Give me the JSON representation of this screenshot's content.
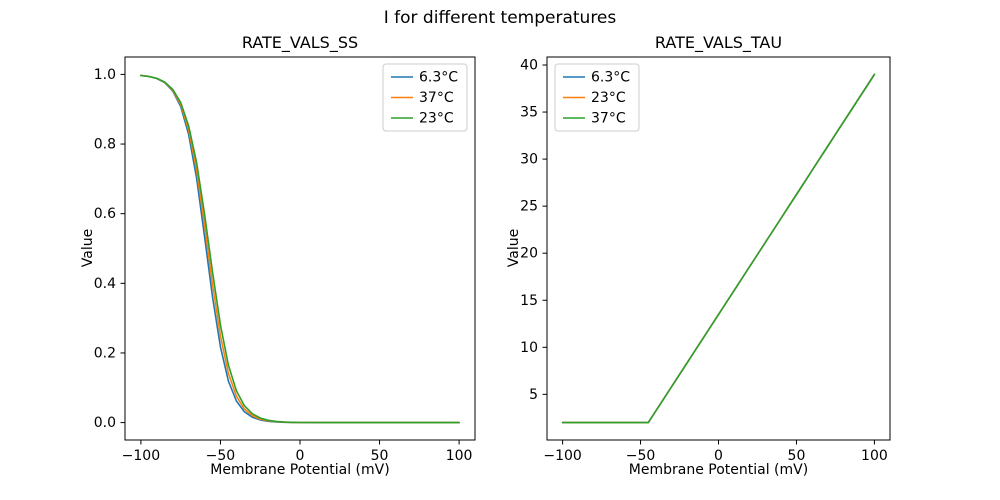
{
  "figure": {
    "title": "I for different temperatures",
    "background": "#ffffff"
  },
  "palette": {
    "blue": "#1f77b4",
    "orange": "#ff7f0e",
    "green": "#2ca02c"
  },
  "chart_data": [
    {
      "type": "line",
      "title": "RATE_VALS_SS",
      "xlabel": "Membrane Potential (mV)",
      "ylabel": "Value",
      "xlim": [
        -110,
        110
      ],
      "ylim": [
        -0.05,
        1.05
      ],
      "xticks": [
        -100,
        -50,
        0,
        50,
        100
      ],
      "xtick_labels": [
        "−100",
        "−50",
        "0",
        "50",
        "100"
      ],
      "yticks": [
        0.0,
        0.2,
        0.4,
        0.6,
        0.8,
        1.0
      ],
      "ytick_labels": [
        "0.0",
        "0.2",
        "0.4",
        "0.6",
        "0.8",
        "1.0"
      ],
      "grid": false,
      "legend_position": "upper right",
      "x": [
        -100,
        -95,
        -90,
        -85,
        -80,
        -75,
        -70,
        -65,
        -60,
        -55,
        -50,
        -45,
        -40,
        -35,
        -30,
        -25,
        -20,
        -15,
        -10,
        -5,
        0,
        5,
        10,
        15,
        20,
        25,
        30,
        35,
        40,
        45,
        50,
        55,
        60,
        65,
        70,
        75,
        80,
        85,
        90,
        95,
        100
      ],
      "series": [
        {
          "name": "6.3°C",
          "color": "#1f77b4",
          "values": [
            0.9971,
            0.9942,
            0.9883,
            0.9762,
            0.9526,
            0.9077,
            0.828,
            0.7021,
            0.5357,
            0.3609,
            0.2166,
            0.1192,
            0.0621,
            0.0314,
            0.0156,
            0.0077,
            0.0038,
            0.0019,
            0.0009,
            0.0005,
            0.0002,
            0.0001,
            0.0001,
            0,
            0,
            0,
            0,
            0,
            0,
            0,
            0,
            0,
            0,
            0,
            0,
            0,
            0,
            0,
            0,
            0,
            0
          ]
        },
        {
          "name": "37°C",
          "color": "#ff7f0e",
          "values": [
            0.9971,
            0.9942,
            0.9884,
            0.977,
            0.955,
            0.9139,
            0.8411,
            0.7256,
            0.569,
            0.3973,
            0.2477,
            0.1412,
            0.0759,
            0.0394,
            0.0201,
            0.0101,
            0.0051,
            0.0025,
            0.0013,
            0.0006,
            0.0003,
            0.0002,
            0.0001,
            0,
            0,
            0,
            0,
            0,
            0,
            0,
            0,
            0,
            0,
            0,
            0,
            0,
            0,
            0,
            0,
            0,
            0
          ]
        },
        {
          "name": "23°C",
          "color": "#2ca02c",
          "values": [
            0.997,
            0.9941,
            0.9886,
            0.9778,
            0.9572,
            0.9192,
            0.8528,
            0.7467,
            0.6,
            0.4329,
            0.2797,
            0.165,
            0.0913,
            0.0487,
            0.0254,
            0.0131,
            0.0067,
            0.0034,
            0.0017,
            0.0009,
            0.0004,
            0.0002,
            0.0001,
            0,
            0,
            0,
            0,
            0,
            0,
            0,
            0,
            0,
            0,
            0,
            0,
            0,
            0,
            0,
            0,
            0,
            0
          ]
        }
      ]
    },
    {
      "type": "line",
      "title": "RATE_VALS_TAU",
      "xlabel": "Membrane Potential (mV)",
      "ylabel": "Value",
      "xlim": [
        -110,
        110
      ],
      "ylim": [
        0.15,
        40.85
      ],
      "xticks": [
        -100,
        -50,
        0,
        50,
        100
      ],
      "xtick_labels": [
        "−100",
        "−50",
        "0",
        "50",
        "100"
      ],
      "yticks": [
        5,
        10,
        15,
        20,
        25,
        30,
        35,
        40
      ],
      "ytick_labels": [
        "5",
        "10",
        "15",
        "20",
        "25",
        "30",
        "35",
        "40"
      ],
      "grid": false,
      "legend_position": "upper left",
      "x": [
        -100,
        -95,
        -90,
        -85,
        -80,
        -75,
        -70,
        -65,
        -60,
        -55,
        -50,
        -45,
        -40,
        -35,
        -30,
        -25,
        -20,
        -15,
        -10,
        -5,
        0,
        5,
        10,
        15,
        20,
        25,
        30,
        35,
        40,
        45,
        50,
        55,
        60,
        65,
        70,
        75,
        80,
        85,
        90,
        95,
        100
      ],
      "series": [
        {
          "name": "6.3°C",
          "color": "#1f77b4",
          "values": [
            2,
            2,
            2,
            2,
            2,
            2,
            2,
            2,
            2,
            2,
            2,
            2,
            3.28,
            4.55,
            5.83,
            7.1,
            8.38,
            9.66,
            10.93,
            12.21,
            13.48,
            14.76,
            16.03,
            17.31,
            18.59,
            19.86,
            21.14,
            22.41,
            23.69,
            24.97,
            26.24,
            27.52,
            28.79,
            30.07,
            31.34,
            32.62,
            33.9,
            35.17,
            36.45,
            37.72,
            39.0
          ]
        },
        {
          "name": "23°C",
          "color": "#ff7f0e",
          "values": [
            2,
            2,
            2,
            2,
            2,
            2,
            2,
            2,
            2,
            2,
            2,
            2,
            3.28,
            4.55,
            5.83,
            7.1,
            8.38,
            9.66,
            10.93,
            12.21,
            13.48,
            14.76,
            16.03,
            17.31,
            18.59,
            19.86,
            21.14,
            22.41,
            23.69,
            24.97,
            26.24,
            27.52,
            28.79,
            30.07,
            31.34,
            32.62,
            33.9,
            35.17,
            36.45,
            37.72,
            39.0
          ]
        },
        {
          "name": "37°C",
          "color": "#2ca02c",
          "values": [
            2,
            2,
            2,
            2,
            2,
            2,
            2,
            2,
            2,
            2,
            2,
            2,
            3.28,
            4.55,
            5.83,
            7.1,
            8.38,
            9.66,
            10.93,
            12.21,
            13.48,
            14.76,
            16.03,
            17.31,
            18.59,
            19.86,
            21.14,
            22.41,
            23.69,
            24.97,
            26.24,
            27.52,
            28.79,
            30.07,
            31.34,
            32.62,
            33.9,
            35.17,
            36.45,
            37.72,
            39.0
          ]
        }
      ]
    }
  ]
}
